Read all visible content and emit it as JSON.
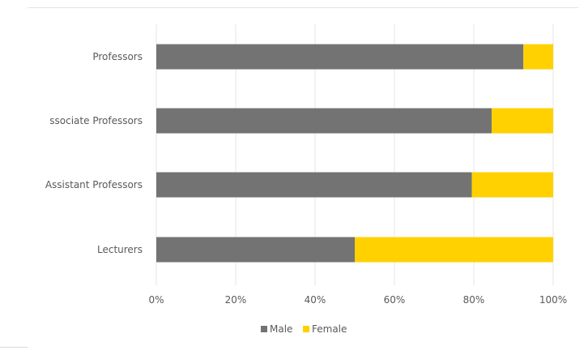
{
  "chart_data": {
    "type": "bar",
    "orientation": "horizontal",
    "stacked": "percent",
    "categories": [
      "Professors",
      "Associate Professors",
      "Assistant Professors",
      "Lecturers"
    ],
    "category_labels_shown": [
      "Professors",
      "ssociate Professors",
      "Assistant Professors",
      "Lecturers"
    ],
    "series": [
      {
        "name": "Male",
        "values": [
          92.5,
          84.5,
          79.5,
          50
        ],
        "color": "#737373"
      },
      {
        "name": "Female",
        "values": [
          7.5,
          15.5,
          20.5,
          50
        ],
        "color": "#ffd100"
      }
    ],
    "xlim": [
      0,
      100
    ],
    "x_ticks": [
      "0%",
      "20%",
      "40%",
      "60%",
      "80%",
      "100%"
    ],
    "grid": "vertical",
    "legend": "bottom-center",
    "title": "",
    "xlabel": "",
    "ylabel": ""
  }
}
